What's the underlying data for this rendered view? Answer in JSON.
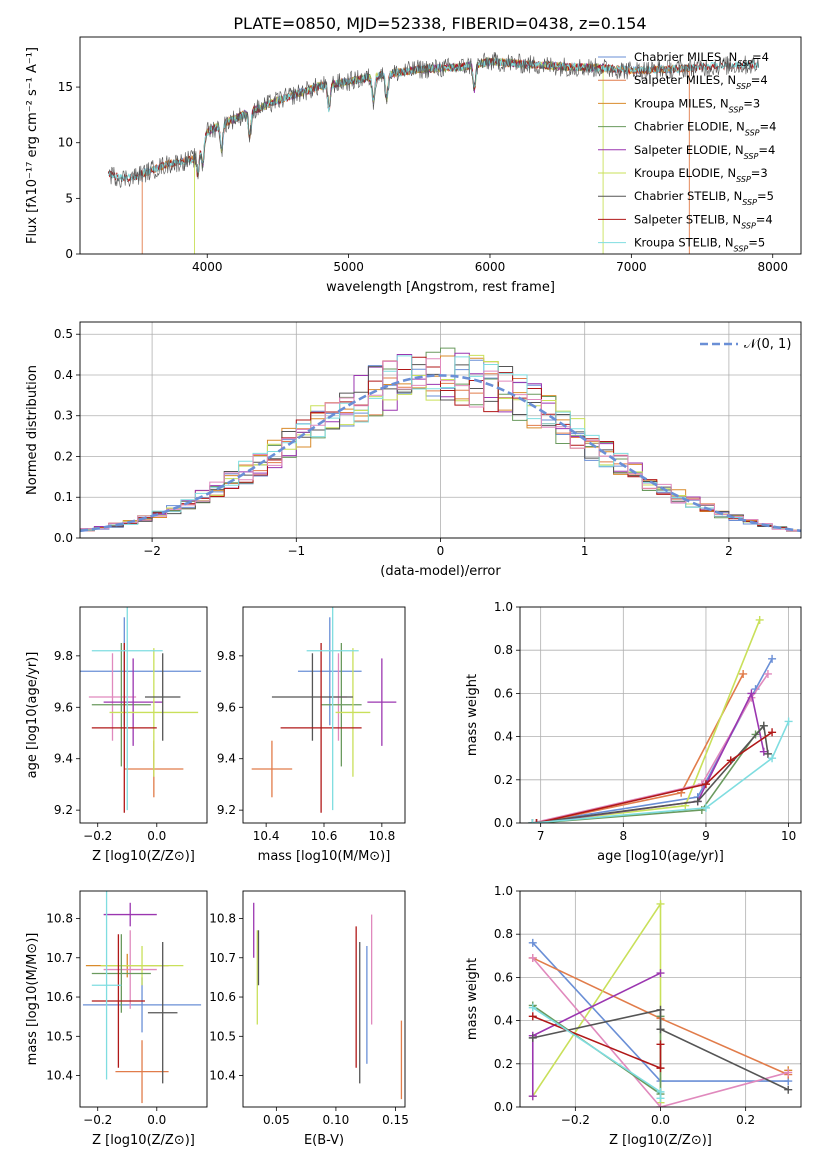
{
  "figure_title": "PLATE=0850, MJD=52338, FIBERID=0438, z=0.154",
  "colors": {
    "Chabrier MILES": "#6a8fd6",
    "Salpeter MILES": "#e17c4a",
    "Kroupa MILES": "#d98b2b",
    "Chabrier ELODIE": "#6a9a5e",
    "Salpeter ELODIE": "#9b36b0",
    "Kroupa ELODIE": "#c9e05a",
    "Chabrier STELIB": "#555555",
    "Salpeter STELIB": "#b01818",
    "Kroupa STELIB": "#7fdde0",
    "pink": "#e089bd",
    "normal": "#6a8fd6"
  },
  "chart_data": [
    {
      "type": "line",
      "title": "PLATE=0850, MJD=52338, FIBERID=0438, z=0.154",
      "xlabel": "wavelength [Angstrom, rest frame]",
      "ylabel": "Flux [fλ10⁻¹⁷ erg cm⁻² s⁻¹ A⁻¹]",
      "xlim": [
        3100,
        8200
      ],
      "ylim": [
        0,
        19.5
      ],
      "xticks": [
        4000,
        5000,
        6000,
        7000,
        8000
      ],
      "yticks": [
        0,
        5,
        10,
        15
      ],
      "legend_placement": "right",
      "legend": [
        "Chabrier MILES, N_SSP=4",
        "Salpeter MILES, N_SSP=4",
        "Kroupa MILES, N_SSP=3",
        "Chabrier ELODIE, N_SSP=4",
        "Salpeter ELODIE, N_SSP=4",
        "Kroupa ELODIE, N_SSP=3",
        "Chabrier STELIB, N_SSP=5",
        "Salpeter STELIB, N_SSP=4",
        "Kroupa STELIB, N_SSP=5"
      ],
      "continuum": {
        "x": [
          3300,
          3400,
          3500,
          3700,
          3900,
          4000,
          4200,
          4500,
          4800,
          5000,
          5200,
          5500,
          5800,
          6000,
          6300,
          6600,
          6800,
          7000,
          7300,
          7600,
          7900
        ],
        "y": [
          7.2,
          6.8,
          7.0,
          8.0,
          8.5,
          11.0,
          12.2,
          13.8,
          15.1,
          15.5,
          16.0,
          16.6,
          16.8,
          17.3,
          17.0,
          16.8,
          16.7,
          16.5,
          16.6,
          16.9,
          17.0
        ]
      }
    },
    {
      "type": "line",
      "xlabel": "(data-model)/error",
      "ylabel": "Normed distribution",
      "xlim": [
        -2.5,
        2.5
      ],
      "ylim": [
        0,
        0.53
      ],
      "xticks": [
        -2,
        -1,
        0,
        1,
        2
      ],
      "yticks": [
        0.0,
        0.1,
        0.2,
        0.3,
        0.4,
        0.5
      ],
      "legend": [
        "𝒩(0, 1)"
      ],
      "legend_placement": "top-right",
      "grid": true,
      "series": [
        {
          "name": "𝒩(0, 1)",
          "function": "normal",
          "mean": 0,
          "sigma": 1
        }
      ]
    },
    {
      "type": "scatter",
      "xlabel": "Z [log10(Z/Z⊙)]",
      "ylabel": "age  [log10(age/yr)]",
      "xlim": [
        -0.26,
        0.17
      ],
      "ylim": [
        9.15,
        9.99
      ],
      "xticks": [
        -0.2,
        0.0
      ],
      "yticks": [
        9.2,
        9.4,
        9.6,
        9.8
      ],
      "points": [
        {
          "x": -0.11,
          "y": 9.74,
          "xerr": 0.26,
          "yerr": 0.21,
          "c": "Chabrier MILES"
        },
        {
          "x": -0.01,
          "y": 9.36,
          "xerr": 0.1,
          "yerr": 0.11,
          "c": "Salpeter MILES"
        },
        {
          "x": -0.15,
          "y": 9.64,
          "xerr": 0.08,
          "yerr": 0.17,
          "c": "pink"
        },
        {
          "x": -0.12,
          "y": 9.61,
          "xerr": 0.1,
          "yerr": 0.24,
          "c": "Chabrier ELODIE"
        },
        {
          "x": -0.08,
          "y": 9.62,
          "xerr": 0.1,
          "yerr": 0.17,
          "c": "Salpeter ELODIE"
        },
        {
          "x": -0.01,
          "y": 9.58,
          "xerr": 0.15,
          "yerr": 0.25,
          "c": "Kroupa ELODIE"
        },
        {
          "x": 0.02,
          "y": 9.64,
          "xerr": 0.06,
          "yerr": 0.17,
          "c": "Chabrier STELIB"
        },
        {
          "x": -0.11,
          "y": 9.52,
          "xerr": 0.11,
          "yerr": 0.33,
          "c": "Salpeter STELIB"
        },
        {
          "x": -0.1,
          "y": 9.82,
          "xerr": 0.12,
          "yerr": 0.62,
          "c": "Kroupa STELIB"
        }
      ]
    },
    {
      "type": "scatter",
      "xlabel": "mass [log10(M/M⊙)]",
      "xlim": [
        10.32,
        10.88
      ],
      "ylim": [
        9.15,
        9.99
      ],
      "xticks": [
        10.4,
        10.6,
        10.8
      ],
      "yticks": [
        9.2,
        9.4,
        9.6,
        9.8
      ],
      "points": [
        {
          "x": 10.62,
          "y": 9.74,
          "xerr": 0.11,
          "yerr": 0.21,
          "c": "Chabrier MILES"
        },
        {
          "x": 10.42,
          "y": 9.36,
          "xerr": 0.07,
          "yerr": 0.11,
          "c": "Salpeter MILES"
        },
        {
          "x": 10.65,
          "y": 9.64,
          "xerr": 0.03,
          "yerr": 0.17,
          "c": "pink"
        },
        {
          "x": 10.66,
          "y": 9.61,
          "xerr": 0.07,
          "yerr": 0.24,
          "c": "Chabrier ELODIE"
        },
        {
          "x": 10.8,
          "y": 9.62,
          "xerr": 0.05,
          "yerr": 0.17,
          "c": "Salpeter ELODIE"
        },
        {
          "x": 10.7,
          "y": 9.58,
          "xerr": 0.06,
          "yerr": 0.25,
          "c": "Kroupa ELODIE"
        },
        {
          "x": 10.56,
          "y": 9.64,
          "xerr": 0.14,
          "yerr": 0.17,
          "c": "Chabrier STELIB"
        },
        {
          "x": 10.59,
          "y": 9.52,
          "xerr": 0.14,
          "yerr": 0.33,
          "c": "Salpeter STELIB"
        },
        {
          "x": 10.63,
          "y": 9.82,
          "xerr": 0.09,
          "yerr": 0.62,
          "c": "Kroupa STELIB"
        }
      ]
    },
    {
      "type": "line",
      "xlabel": "age  [log10(age/yr)]",
      "ylabel": "mass weight",
      "xlim": [
        6.75,
        10.15
      ],
      "ylim": [
        0,
        1.0
      ],
      "xticks": [
        7,
        8,
        9,
        10
      ],
      "yticks": [
        0.0,
        0.2,
        0.4,
        0.6,
        0.8,
        1.0
      ],
      "grid": true,
      "series": [
        {
          "c": "Chabrier MILES",
          "x": [
            6.9,
            8.9,
            9.6,
            9.8
          ],
          "y": [
            0.0,
            0.12,
            0.62,
            0.76
          ]
        },
        {
          "c": "Salpeter MILES",
          "x": [
            6.95,
            8.7,
            9.45
          ],
          "y": [
            0.0,
            0.14,
            0.69
          ]
        },
        {
          "c": "Kroupa ELODIE",
          "x": [
            6.9,
            8.75,
            9.65
          ],
          "y": [
            0.0,
            0.08,
            0.94
          ]
        },
        {
          "c": "pink",
          "x": [
            6.9,
            8.95,
            9.55,
            9.75
          ],
          "y": [
            0.0,
            0.18,
            0.58,
            0.69
          ]
        },
        {
          "c": "Salpeter ELODIE",
          "x": [
            6.95,
            8.9,
            9.55,
            9.7
          ],
          "y": [
            0.0,
            0.1,
            0.6,
            0.33
          ]
        },
        {
          "c": "Chabrier ELODIE",
          "x": [
            6.95,
            8.95,
            9.6,
            9.7
          ],
          "y": [
            0.0,
            0.06,
            0.41,
            0.45
          ]
        },
        {
          "c": "Chabrier STELIB",
          "x": [
            6.9,
            8.9,
            9.7,
            9.75
          ],
          "y": [
            0.0,
            0.1,
            0.45,
            0.32
          ]
        },
        {
          "c": "Salpeter STELIB",
          "x": [
            6.95,
            9.0,
            9.3,
            9.8
          ],
          "y": [
            0.0,
            0.18,
            0.29,
            0.42
          ]
        },
        {
          "c": "Kroupa STELIB",
          "x": [
            6.9,
            9.0,
            9.8,
            10.0
          ],
          "y": [
            0.0,
            0.07,
            0.3,
            0.47
          ]
        }
      ]
    },
    {
      "type": "scatter",
      "xlabel": "Z [log10(Z/Z⊙)]",
      "ylabel": "mass [log10(M/M⊙)]",
      "xlim": [
        -0.26,
        0.17
      ],
      "ylim": [
        10.32,
        10.87
      ],
      "xticks": [
        -0.2,
        0.0
      ],
      "yticks": [
        10.4,
        10.5,
        10.6,
        10.7,
        10.8
      ],
      "points": [
        {
          "x": -0.05,
          "y": 10.58,
          "xerr": 0.2,
          "yerr": 0.07,
          "c": "Chabrier MILES"
        },
        {
          "x": -0.05,
          "y": 10.41,
          "xerr": 0.09,
          "yerr": 0.08,
          "c": "Salpeter MILES"
        },
        {
          "x": -0.1,
          "y": 10.68,
          "xerr": 0.14,
          "yerr": 0.03,
          "c": "Kroupa MILES"
        },
        {
          "x": -0.09,
          "y": 10.67,
          "xerr": 0.09,
          "yerr": 0.1,
          "c": "pink"
        },
        {
          "x": -0.09,
          "y": 10.81,
          "xerr": 0.09,
          "yerr": 0.03,
          "c": "Salpeter ELODIE"
        },
        {
          "x": -0.05,
          "y": 10.68,
          "xerr": 0.14,
          "yerr": 0.05,
          "c": "Kroupa ELODIE"
        },
        {
          "x": -0.12,
          "y": 10.66,
          "xerr": 0.1,
          "yerr": 0.1,
          "c": "Chabrier ELODIE"
        },
        {
          "x": 0.02,
          "y": 10.56,
          "xerr": 0.05,
          "yerr": 0.18,
          "c": "Chabrier STELIB"
        },
        {
          "x": -0.13,
          "y": 10.59,
          "xerr": 0.09,
          "yerr": 0.17,
          "c": "Salpeter STELIB"
        },
        {
          "x": -0.17,
          "y": 10.63,
          "xerr": 0.05,
          "yerr": 0.24,
          "c": "Kroupa STELIB"
        }
      ]
    },
    {
      "type": "scatter",
      "xlabel": "E(B-V)",
      "xlim": [
        0.022,
        0.158
      ],
      "ylim": [
        10.32,
        10.87
      ],
      "xticks": [
        0.05,
        0.1,
        0.15
      ],
      "yticks": [
        10.4,
        10.5,
        10.6,
        10.7,
        10.8
      ],
      "points": [
        {
          "x": 0.031,
          "y": 10.77,
          "yerr": 0.07,
          "c": "Salpeter ELODIE"
        },
        {
          "x": 0.034,
          "y": 10.65,
          "yerr": 0.12,
          "c": "Kroupa ELODIE"
        },
        {
          "x": 0.035,
          "y": 10.7,
          "yerr": 0.07,
          "c": "Chabrier STELIB"
        },
        {
          "x": 0.117,
          "y": 10.6,
          "yerr": 0.18,
          "c": "Salpeter STELIB"
        },
        {
          "x": 0.12,
          "y": 10.56,
          "yerr": 0.18,
          "c": "Chabrier STELIB"
        },
        {
          "x": 0.126,
          "y": 10.58,
          "yerr": 0.15,
          "c": "Chabrier MILES"
        },
        {
          "x": 0.13,
          "y": 10.67,
          "yerr": 0.14,
          "c": "pink"
        },
        {
          "x": 0.155,
          "y": 10.44,
          "yerr": 0.1,
          "c": "Salpeter MILES"
        }
      ]
    },
    {
      "type": "line",
      "xlabel": "Z [log10(Z/Z⊙)]",
      "ylabel": "mass weight",
      "xlim": [
        -0.33,
        0.33
      ],
      "ylim": [
        0,
        1.0
      ],
      "xticks": [
        -0.2,
        0.0,
        0.2
      ],
      "yticks": [
        0.0,
        0.2,
        0.4,
        0.6,
        0.8,
        1.0
      ],
      "grid": true,
      "series": [
        {
          "c": "Chabrier MILES",
          "x": [
            -0.3,
            0.0,
            0.3
          ],
          "y": [
            0.76,
            0.12,
            0.12
          ]
        },
        {
          "c": "Salpeter MILES",
          "x": [
            -0.3,
            0.0,
            0.3
          ],
          "y": [
            0.69,
            0.41,
            0.15
          ]
        },
        {
          "c": "Kroupa MILES",
          "x": [
            0.3
          ],
          "y": [
            0.17
          ]
        },
        {
          "c": "Kroupa ELODIE",
          "x": [
            -0.3,
            0.0,
            0.0
          ],
          "y": [
            0.05,
            0.94,
            0.02
          ]
        },
        {
          "c": "pink",
          "x": [
            -0.3,
            0.0,
            0.3
          ],
          "y": [
            0.69,
            0.0,
            0.16
          ]
        },
        {
          "c": "Salpeter ELODIE",
          "x": [
            -0.3,
            -0.3,
            0.0
          ],
          "y": [
            0.05,
            0.33,
            0.62
          ]
        },
        {
          "c": "Chabrier ELODIE",
          "x": [
            -0.3,
            0.0,
            0.0
          ],
          "y": [
            0.47,
            0.06,
            0.42
          ]
        },
        {
          "c": "Chabrier STELIB",
          "x": [
            -0.3,
            0.0,
            0.0,
            0.3
          ],
          "y": [
            0.32,
            0.45,
            0.36,
            0.08
          ]
        },
        {
          "c": "Salpeter STELIB",
          "x": [
            -0.3,
            0.0,
            0.0
          ],
          "y": [
            0.42,
            0.18,
            0.29
          ]
        },
        {
          "c": "Kroupa STELIB",
          "x": [
            -0.3,
            0.0,
            0.0
          ],
          "y": [
            0.46,
            0.07,
            0.04
          ]
        }
      ]
    }
  ]
}
